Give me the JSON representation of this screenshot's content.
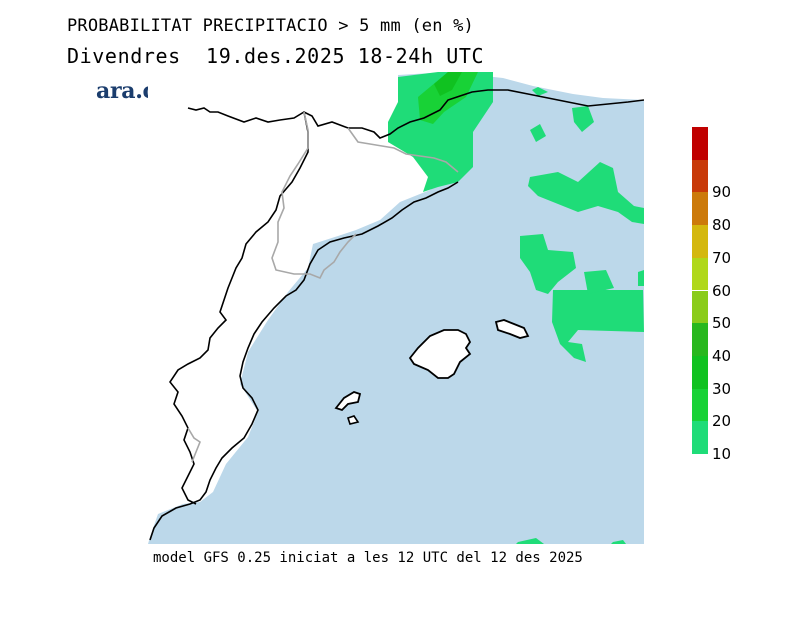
{
  "header": {
    "title": "PROBABILITAT PRECIPITACIO > 5 mm (en %)",
    "subtitle": "Divendres  19.des.2025 18-24h UTC"
  },
  "logo": {
    "text": "ara.cat"
  },
  "footer": {
    "text": "model GFS 0.25 iniciat a les 12 UTC del 12 des 2025"
  },
  "legend": {
    "ticks": [
      "10",
      "20",
      "30",
      "40",
      "50",
      "60",
      "70",
      "80",
      "90"
    ],
    "bins": [
      {
        "from": 10,
        "to": 20,
        "color": "#1fdc78"
      },
      {
        "from": 20,
        "to": 30,
        "color": "#18d236"
      },
      {
        "from": 30,
        "to": 40,
        "color": "#10c220"
      },
      {
        "from": 40,
        "to": 50,
        "color": "#28b81e"
      },
      {
        "from": 50,
        "to": 60,
        "color": "#8acc1a"
      },
      {
        "from": 60,
        "to": 70,
        "color": "#b0d81a"
      },
      {
        "from": 70,
        "to": 80,
        "color": "#d4b80e"
      },
      {
        "from": 80,
        "to": 90,
        "color": "#cc7a0a"
      },
      {
        "from": 90,
        "to": 100,
        "color": "#c83a08"
      },
      {
        "from": 100,
        "to": 110,
        "color": "#c00000"
      }
    ]
  },
  "map_colors": {
    "sea": "#bcd8ea",
    "land": "#ffffff",
    "coast": "#000000",
    "border": "#a8a8a8"
  }
}
